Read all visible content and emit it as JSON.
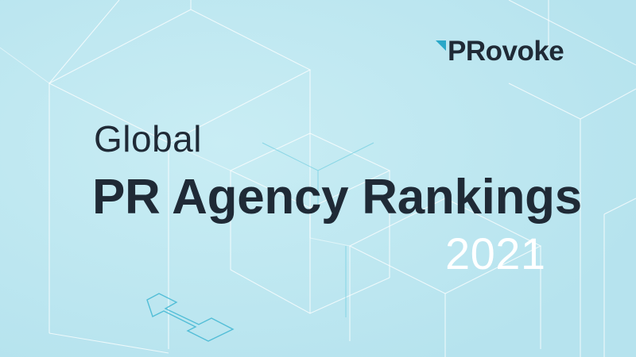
{
  "brand": {
    "name": "PRovoke",
    "accent_color": "#2aa8c8",
    "text_color": "#1f2a36"
  },
  "headline": {
    "line1": "Global",
    "line2": "PR Agency Rankings",
    "year": "2021"
  },
  "colors": {
    "background": "#bfe8f1",
    "line_color": "#ffffff",
    "line_accent": "#6fcde0",
    "year_color": "#ffffff"
  }
}
